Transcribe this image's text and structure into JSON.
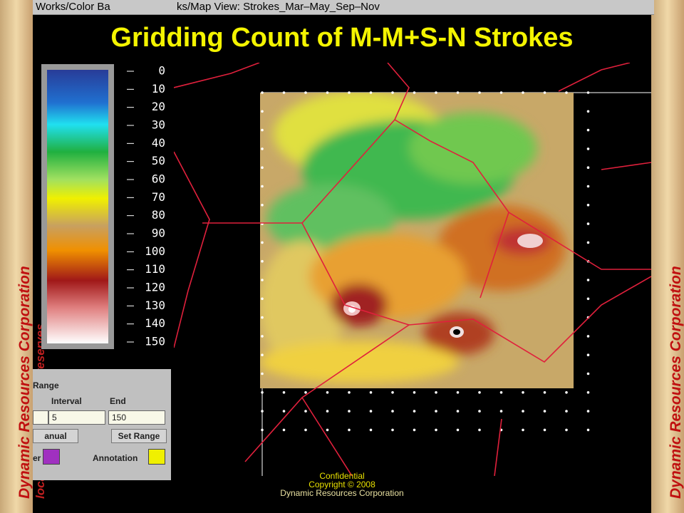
{
  "window_titles": {
    "left": "Works/Color Ba",
    "right": "ks/Map View: Strokes_Mar–May_Sep–Nov"
  },
  "header": {
    "title": "Gridding Count of M-M+S-N Strokes"
  },
  "color_scale": {
    "ticks": [
      0,
      10,
      20,
      30,
      40,
      50,
      60,
      70,
      80,
      90,
      100,
      110,
      120,
      130,
      140,
      150
    ]
  },
  "range_panel": {
    "heading": "Range",
    "interval_label": "Interval",
    "end_label": "End",
    "interval_value": "5",
    "end_value": "150",
    "mode_button": "anual",
    "set_range_button": "Set Range",
    "color_label": "er",
    "annotation_label": "Annotation"
  },
  "footer": {
    "line1": "Confidential",
    "line2": "Copyright © 2008",
    "line3": "Dynamic Resources Corporation"
  },
  "banner": {
    "company": "Dynamic Resources Corporation",
    "slogan": "locating replenishing reserves"
  }
}
